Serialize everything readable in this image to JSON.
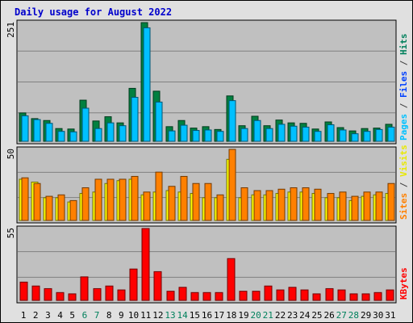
{
  "chart_data": {
    "type": "bar",
    "title": "Daily usage for August 2022",
    "days": [
      "1",
      "2",
      "3",
      "4",
      "5",
      "6",
      "7",
      "8",
      "9",
      "10",
      "11",
      "12",
      "13",
      "14",
      "15",
      "16",
      "17",
      "18",
      "19",
      "20",
      "21",
      "22",
      "23",
      "24",
      "25",
      "26",
      "27",
      "28",
      "29",
      "30",
      "31"
    ],
    "weekend_days": [
      "6",
      "7",
      "13",
      "14",
      "20",
      "21",
      "27",
      "28"
    ],
    "grid": true,
    "panels": [
      {
        "name": "hits",
        "ymax": 251,
        "ymax_label": "251",
        "series": [
          {
            "name": "Hits",
            "color": "#008040",
            "values": [
              60,
              48,
              44,
              27,
              26,
              87,
              43,
              52,
              39,
              112,
              251,
              106,
              31,
              44,
              28,
              31,
              25,
              96,
              33,
              53,
              33,
              45,
              39,
              38,
              26,
              41,
              29,
              22,
              27,
              28,
              36
            ]
          },
          {
            "name": "Files",
            "color": "#00C0FF",
            "values": [
              54,
              46,
              38,
              21,
              20,
              70,
              27,
              39,
              33,
              93,
              240,
              83,
              22,
              34,
              23,
              24,
              21,
              86,
              27,
              44,
              27,
              36,
              32,
              30,
              21,
              35,
              24,
              16,
              21,
              25,
              30
            ]
          },
          {
            "name": "Pages",
            "color": "#00FFFF",
            "values": [
              0,
              0,
              0,
              0,
              0,
              0,
              0,
              0,
              0,
              0,
              0,
              0,
              0,
              0,
              0,
              0,
              0,
              0,
              0,
              0,
              0,
              0,
              0,
              0,
              0,
              0,
              0,
              0,
              0,
              0,
              0
            ]
          }
        ],
        "labels": [
          {
            "text": "Pages",
            "color": "#00C0FF"
          },
          {
            "text": " / ",
            "color": "#404040"
          },
          {
            "text": "Files",
            "color": "#0040FF"
          },
          {
            "text": " / ",
            "color": "#404040"
          },
          {
            "text": "Hits",
            "color": "#00805C"
          }
        ]
      },
      {
        "name": "visits",
        "ymax": 50,
        "ymax_label": "50",
        "series": [
          {
            "name": "Visits",
            "color": "#FFFF00",
            "values": [
              29,
              27,
              16,
              16,
              13,
              19,
              20,
              26,
              28,
              29,
              18,
              20,
              21,
              20,
              19,
              16,
              16,
              43,
              16,
              18,
              18,
              19,
              20,
              20,
              19,
              16,
              16,
              14,
              17,
              18,
              19
            ]
          },
          {
            "name": "Sites",
            "color": "#FF8000",
            "values": [
              30,
              26,
              17,
              18,
              14,
              23,
              29,
              29,
              29,
              31,
              20,
              34,
              24,
              31,
              26,
              26,
              18,
              50,
              23,
              21,
              21,
              22,
              23,
              23,
              22,
              19,
              20,
              17,
              20,
              20,
              26
            ]
          }
        ],
        "labels": [
          {
            "text": "Sites",
            "color": "#FF8000"
          },
          {
            "text": " / ",
            "color": "#404040"
          },
          {
            "text": "Visits",
            "color": "#E8E800"
          }
        ]
      },
      {
        "name": "kbytes",
        "ymax": 55,
        "ymax_label": "55",
        "series": [
          {
            "name": "KBytes",
            "color": "#FF0000",
            "values": [
              14,
              11,
              9,
              6,
              5,
              18,
              9,
              11,
              8,
              24,
              55,
              22,
              7,
              10,
              6,
              6,
              6,
              32,
              7,
              7,
              11,
              8,
              10,
              8,
              5,
              9,
              8,
              5,
              5,
              6,
              8
            ]
          }
        ],
        "labels": [
          {
            "text": "KBytes",
            "color": "#FF0000"
          }
        ]
      }
    ]
  }
}
